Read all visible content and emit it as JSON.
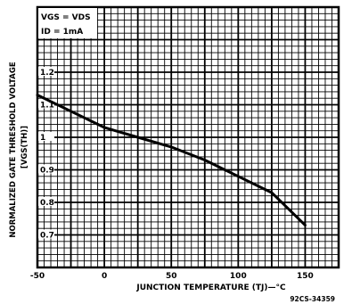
{
  "chart_data": {
    "type": "line",
    "title": "",
    "xlabel": "JUNCTION TEMPERATURE (TJ)—°C",
    "ylabel": "NORMALIZED GATE THRESHOLD VOLTAGE",
    "ylabel_sub": "[VGS(TH)]",
    "xlim": [
      -50,
      175
    ],
    "ylim": [
      0.6,
      1.4
    ],
    "x_ticks": [
      -50,
      0,
      50,
      100,
      150
    ],
    "x_tick_labels": [
      "-50",
      "0",
      "50",
      "100",
      "150"
    ],
    "y_ticks": [
      0.7,
      0.8,
      0.9,
      1.0,
      1.1,
      1.2
    ],
    "y_tick_labels": [
      "0.7",
      "0.8",
      "0.9",
      "1",
      "1.1",
      "1.2"
    ],
    "grid": true,
    "conditions": [
      "VGS = VDS",
      "ID = 1mA"
    ],
    "figure_id": "92CS-34359",
    "series": [
      {
        "x": [
          -50,
          -25,
          0,
          25,
          50,
          75,
          100,
          125,
          140,
          150
        ],
        "y": [
          1.13,
          1.08,
          1.03,
          1.0,
          0.97,
          0.93,
          0.88,
          0.83,
          0.77,
          0.73
        ]
      }
    ]
  }
}
